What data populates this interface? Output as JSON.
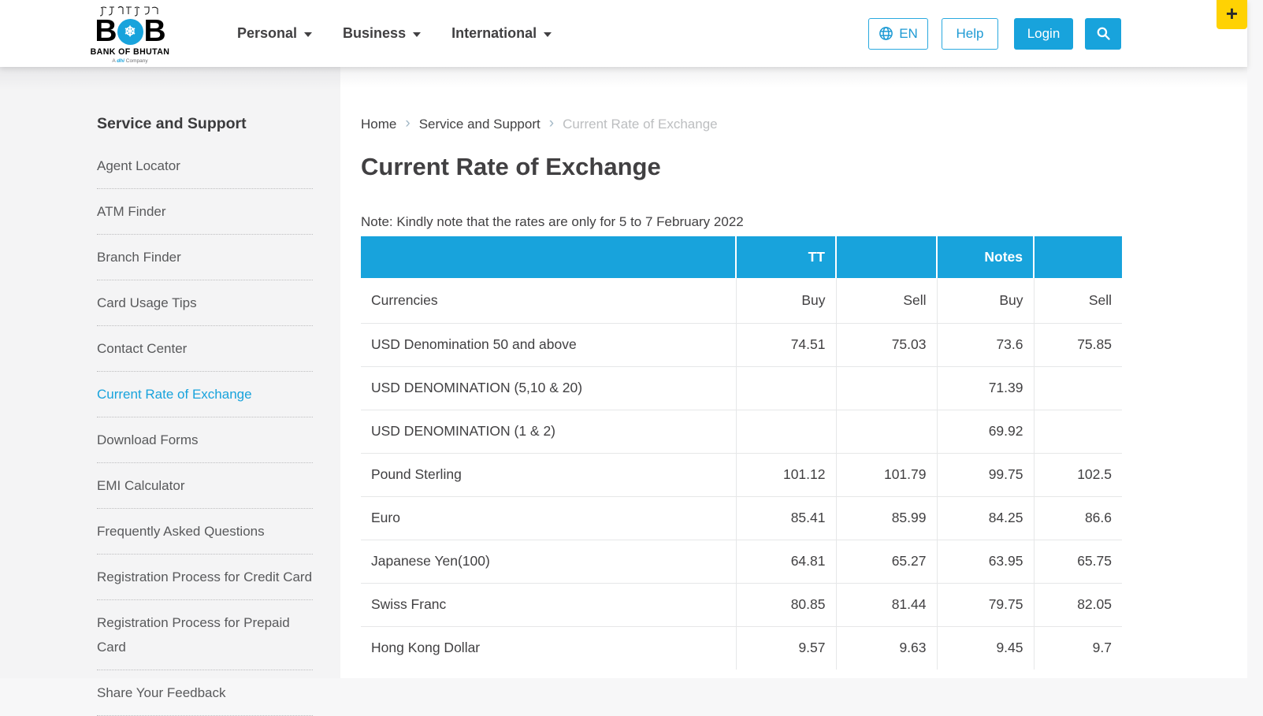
{
  "colors": {
    "accent": "#18a3dc",
    "yellow": "#ffd203",
    "text": "#414042",
    "muted": "#bcbec0"
  },
  "brand": {
    "dzongkha": "འབྲུག་གི་དངུལ་ཁང་",
    "name_left": "B",
    "name_right": "B",
    "snowflake": "❄",
    "subtitle": "BANK OF BHUTAN",
    "tagline_prefix": "A",
    "tagline_dhi": "dhi",
    "tagline_suffix": "Company"
  },
  "header": {
    "nav": [
      {
        "label": "Personal"
      },
      {
        "label": "Business"
      },
      {
        "label": "International"
      }
    ],
    "lang_label": "EN",
    "help_label": "Help",
    "login_label": "Login",
    "plus_label": "+"
  },
  "sidebar": {
    "title": "Service and Support",
    "items": [
      {
        "label": "Agent Locator",
        "active": false
      },
      {
        "label": "ATM Finder",
        "active": false
      },
      {
        "label": "Branch Finder",
        "active": false
      },
      {
        "label": "Card Usage Tips",
        "active": false
      },
      {
        "label": "Contact Center",
        "active": false
      },
      {
        "label": "Current Rate of Exchange",
        "active": true
      },
      {
        "label": "Download Forms",
        "active": false
      },
      {
        "label": "EMI Calculator",
        "active": false
      },
      {
        "label": "Frequently Asked Questions",
        "active": false
      },
      {
        "label": "Registration Process for Credit Card",
        "active": false
      },
      {
        "label": "Registration Process for Prepaid Card",
        "active": false
      },
      {
        "label": "Share Your Feedback",
        "active": false
      }
    ]
  },
  "breadcrumb": {
    "items": [
      "Home",
      "Service and Support",
      "Current Rate of Exchange"
    ]
  },
  "main": {
    "title": "Current Rate of Exchange",
    "note": "Note: Kindly note that the rates are only for 5 to 7 February 2022"
  },
  "rates_table": {
    "group_headers": [
      "",
      "TT",
      "",
      "Notes",
      ""
    ],
    "sub_headers": [
      "Currencies",
      "Buy",
      "Sell",
      "Buy",
      "Sell"
    ],
    "rows": [
      {
        "currency": "USD Denomination 50 and above",
        "tt_buy": "74.51",
        "tt_sell": "75.03",
        "notes_buy": "73.6",
        "notes_sell": "75.85"
      },
      {
        "currency": "USD DENOMINATION (5,10 & 20)",
        "tt_buy": "",
        "tt_sell": "",
        "notes_buy": "71.39",
        "notes_sell": ""
      },
      {
        "currency": "USD DENOMINATION (1 & 2)",
        "tt_buy": "",
        "tt_sell": "",
        "notes_buy": "69.92",
        "notes_sell": ""
      },
      {
        "currency": "Pound Sterling",
        "tt_buy": "101.12",
        "tt_sell": "101.79",
        "notes_buy": "99.75",
        "notes_sell": "102.5"
      },
      {
        "currency": "Euro",
        "tt_buy": "85.41",
        "tt_sell": "85.99",
        "notes_buy": "84.25",
        "notes_sell": "86.6"
      },
      {
        "currency": "Japanese Yen(100)",
        "tt_buy": "64.81",
        "tt_sell": "65.27",
        "notes_buy": "63.95",
        "notes_sell": "65.75"
      },
      {
        "currency": "Swiss Franc",
        "tt_buy": "80.85",
        "tt_sell": "81.44",
        "notes_buy": "79.75",
        "notes_sell": "82.05"
      },
      {
        "currency": "Hong Kong Dollar",
        "tt_buy": "9.57",
        "tt_sell": "9.63",
        "notes_buy": "9.45",
        "notes_sell": "9.7"
      }
    ]
  }
}
